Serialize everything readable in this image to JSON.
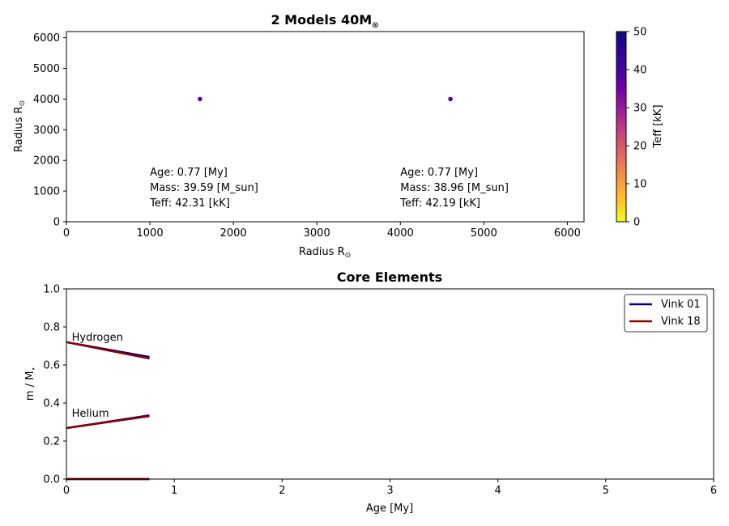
{
  "chart_data": [
    {
      "type": "scatter",
      "title": "2 Models 40M",
      "title_sub": "⊙",
      "xlabel": "Radius R",
      "ylabel": "Radius R",
      "label_sub": "⊙",
      "xlim": [
        0,
        6200
      ],
      "ylim": [
        0,
        6200
      ],
      "xticks": [
        "0",
        "1000",
        "2000",
        "3000",
        "4000",
        "5000",
        "6000"
      ],
      "yticks": [
        "0",
        "1000",
        "2000",
        "3000",
        "4000",
        "5000",
        "6000"
      ],
      "points": [
        {
          "x": 1600,
          "y": 4000,
          "teff": 42.31,
          "color": "#5c01a6"
        },
        {
          "x": 4600,
          "y": 4000,
          "teff": 42.19,
          "color": "#5c01a6"
        }
      ],
      "annotations": [
        {
          "x": 1000,
          "lines": [
            "Age: 0.77 [My]",
            "Mass: 39.59 [M_sun]",
            "Teff: 42.31 [kK]"
          ]
        },
        {
          "x": 4000,
          "lines": [
            "Age: 0.77 [My]",
            "Mass: 38.96 [M_sun]",
            "Teff: 42.19 [kK]"
          ]
        }
      ],
      "colorbar": {
        "label": "Teff [kK]",
        "range": [
          0,
          50
        ],
        "ticks": [
          "0",
          "10",
          "20",
          "30",
          "40",
          "50"
        ],
        "colormap": "plasma"
      }
    },
    {
      "type": "line",
      "title": "Core Elements",
      "xlabel": "Age [My]",
      "ylabel": "m / M",
      "ylabel_sub": "⋆",
      "xlim": [
        0,
        6
      ],
      "ylim": [
        0,
        1
      ],
      "xticks": [
        "0",
        "1",
        "2",
        "3",
        "4",
        "5",
        "6"
      ],
      "yticks": [
        "0.0",
        "0.2",
        "0.4",
        "0.6",
        "0.8",
        "1.0"
      ],
      "legend_position": "top-right",
      "series": [
        {
          "name": "Vink 01",
          "color": "#00007f",
          "hydrogen": [
            [
              0,
              0.72
            ],
            [
              0.77,
              0.642
            ]
          ],
          "helium": [
            [
              0,
              0.268
            ],
            [
              0.77,
              0.335
            ]
          ],
          "metals": [
            [
              0,
              0.0
            ],
            [
              0.77,
              0.0
            ]
          ]
        },
        {
          "name": "Vink 18",
          "color": "#8b0000",
          "hydrogen": [
            [
              0,
              0.72
            ],
            [
              0.77,
              0.634
            ]
          ],
          "helium": [
            [
              0,
              0.268
            ],
            [
              0.77,
              0.331
            ]
          ],
          "metals": [
            [
              0,
              0.0
            ],
            [
              0.77,
              0.0
            ]
          ]
        }
      ],
      "labels": [
        {
          "text": "Hydrogen",
          "x": 0.05,
          "y": 0.75
        },
        {
          "text": "Helium",
          "x": 0.05,
          "y": 0.35
        }
      ]
    }
  ]
}
